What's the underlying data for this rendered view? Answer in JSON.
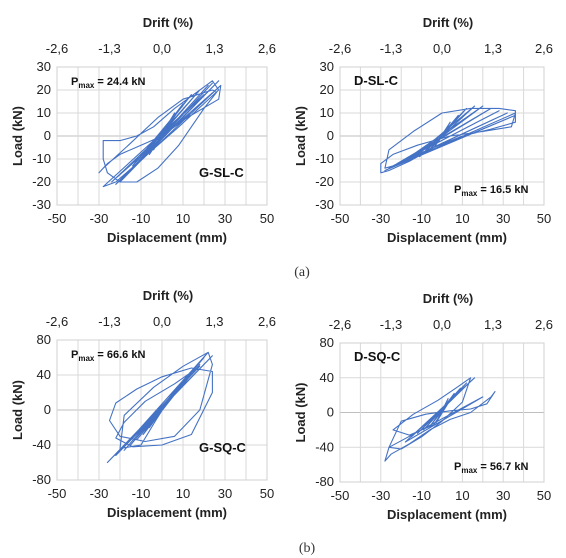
{
  "captions": [
    "(a)",
    "(b)"
  ],
  "colors": {
    "curve": "#4472c4",
    "grid": "#d9d9d9"
  },
  "chart_data": [
    {
      "type": "line",
      "panel": "G-SL-C",
      "label": "G-SL-C",
      "pmax_symbol": "P",
      "pmax_subscript": "max",
      "pmax_value": " = 24.4 kN",
      "xlabel": "Displacement (mm)",
      "ylabel": "Load (kN)",
      "top_label": "Drift (%)",
      "xlim": [
        -50,
        50
      ],
      "ylim": [
        -30,
        30
      ],
      "xticks": [
        -50,
        -30,
        -10,
        10,
        30,
        50
      ],
      "yticks": [
        30,
        20,
        10,
        0,
        -10,
        -20,
        -30
      ],
      "top_ticks": [
        "-2,6",
        "-1,3",
        "0,0",
        "1,3",
        "2,6"
      ],
      "top_tick_x": [
        -50,
        -25,
        0,
        25,
        50
      ],
      "pmax_pos": "top-left",
      "label_pos": "bottom-right",
      "grid": true,
      "series": [
        {
          "x": [
            0,
            5,
            -4,
            6,
            -6,
            10,
            -10,
            14,
            -14,
            18,
            -16,
            22,
            -18,
            24,
            -20,
            27,
            -22,
            28,
            -24,
            20,
            -28,
            -22,
            8,
            27,
            24,
            6,
            -4,
            -12,
            -20,
            -28,
            -28,
            -26,
            -20,
            -12,
            -2,
            8,
            20,
            26,
            24,
            10,
            -2,
            -16,
            -28,
            -30,
            -26,
            -20,
            -10,
            0,
            12,
            27,
            28,
            14,
            0
          ],
          "y": [
            0,
            8,
            -6,
            10,
            -8,
            14,
            -10,
            18,
            -13,
            20,
            -16,
            22,
            -18,
            23,
            -20,
            24,
            -21,
            22,
            -20,
            18,
            -22,
            -20,
            4,
            20,
            24,
            12,
            4,
            0,
            -2,
            -2,
            -10,
            -16,
            -20,
            -20,
            -14,
            -4,
            12,
            19,
            20,
            16,
            8,
            -4,
            -14,
            -16,
            -12,
            -8,
            -4,
            0,
            8,
            16,
            22,
            10,
            0
          ]
        }
      ]
    },
    {
      "type": "line",
      "panel": "D-SL-C",
      "label": "D-SL-C",
      "pmax_symbol": "P",
      "pmax_subscript": "max",
      "pmax_value": " = 16.5 kN",
      "xlabel": "Displacement (mm)",
      "ylabel": "Load (kN)",
      "top_label": "Drift (%)",
      "xlim": [
        -50,
        50
      ],
      "ylim": [
        -30,
        30
      ],
      "xticks": [
        -50,
        -30,
        -10,
        10,
        30,
        50
      ],
      "yticks": [
        30,
        20,
        10,
        0,
        -10,
        -20,
        -30
      ],
      "top_ticks": [
        "-2,6",
        "-1,3",
        "0,0",
        "1,3",
        "2,6"
      ],
      "top_tick_x": [
        -50,
        -25,
        0,
        25,
        50
      ],
      "pmax_pos": "bottom-right",
      "label_pos": "top-left",
      "grid": true,
      "series": [
        {
          "x": [
            0,
            4,
            -4,
            8,
            -7,
            12,
            -11,
            16,
            -15,
            20,
            -19,
            24,
            -22,
            28,
            -24,
            32,
            -26,
            36,
            -28,
            36,
            34,
            20,
            4,
            -12,
            -24,
            -30,
            -30,
            -26,
            -16,
            -4,
            10,
            24,
            36,
            36,
            28,
            14,
            0,
            -14,
            -26,
            -28,
            -20,
            -6,
            0
          ],
          "y": [
            0,
            6,
            -5,
            9,
            -7,
            12,
            -9,
            13,
            -10,
            13,
            -11,
            12,
            -12,
            11,
            -13,
            10,
            -14,
            9,
            -15,
            10,
            4,
            2,
            0,
            -4,
            -8,
            -12,
            -16,
            -15,
            -11,
            -5,
            0,
            3,
            6,
            11,
            12,
            12,
            10,
            2,
            -6,
            -14,
            -12,
            -6,
            0
          ]
        }
      ]
    },
    {
      "type": "line",
      "panel": "G-SQ-C",
      "label": "G-SQ-C",
      "pmax_symbol": "P",
      "pmax_subscript": "max",
      "pmax_value": " = 66.6 kN",
      "xlabel": "Displacement (mm)",
      "ylabel": "Load (kN)",
      "top_label": "Drift (%)",
      "xlim": [
        -50,
        50
      ],
      "ylim": [
        -80,
        80
      ],
      "xticks": [
        -50,
        -30,
        -10,
        10,
        30,
        50
      ],
      "yticks": [
        80,
        40,
        0,
        -40,
        -80
      ],
      "top_ticks": [
        "-2,6",
        "-1,3",
        "0,0",
        "1,3",
        "2,6"
      ],
      "top_tick_x": [
        -50,
        -25,
        0,
        25,
        50
      ],
      "pmax_pos": "top-left",
      "label_pos": "bottom-right",
      "grid": true,
      "series": [
        {
          "x": [
            0,
            4,
            -3,
            7,
            -6,
            10,
            -9,
            14,
            -12,
            18,
            -15,
            20,
            -18,
            22,
            -22,
            24,
            -26,
            18,
            6,
            -8,
            -18,
            -22,
            -14,
            0,
            14,
            24,
            24,
            14,
            0,
            -12,
            -22,
            -25,
            -20,
            -8,
            6,
            18,
            24,
            22,
            10,
            -4,
            -18,
            -20,
            -10,
            0
          ],
          "y": [
            0,
            16,
            -12,
            26,
            -20,
            34,
            -28,
            42,
            -34,
            52,
            -40,
            60,
            -46,
            66,
            -52,
            62,
            -60,
            50,
            30,
            10,
            -14,
            -32,
            -42,
            -40,
            -28,
            20,
            44,
            48,
            38,
            24,
            8,
            -12,
            -30,
            -36,
            -30,
            0,
            52,
            66,
            50,
            26,
            -6,
            -44,
            -40,
            0
          ]
        }
      ]
    },
    {
      "type": "line",
      "panel": "D-SQ-C",
      "label": "D-SQ-C",
      "pmax_symbol": "P",
      "pmax_subscript": "max",
      "pmax_value": " = 56.7 kN",
      "xlabel": "Displacement (mm)",
      "ylabel": "Load (kN)",
      "top_label": "Drift (%)",
      "xlim": [
        -50,
        50
      ],
      "ylim": [
        -80,
        80
      ],
      "xticks": [
        -50,
        -30,
        -10,
        10,
        30,
        50
      ],
      "yticks": [
        80,
        40,
        0,
        -40,
        -80
      ],
      "top_ticks": [
        "-2,6",
        "-1,3",
        "0,0",
        "1,3",
        "2,6"
      ],
      "top_tick_x": [
        -50,
        -25,
        0,
        25,
        50
      ],
      "pmax_pos": "bottom-right",
      "label_pos": "top-left",
      "grid": true,
      "series": [
        {
          "x": [
            0,
            3,
            -3,
            6,
            -6,
            9,
            -9,
            12,
            -12,
            15,
            -15,
            16,
            -18,
            20,
            -26,
            -28,
            -25,
            -16,
            -6,
            4,
            14,
            24,
            26,
            22,
            14,
            4,
            -8,
            -20,
            -26,
            -20,
            -10,
            0,
            10,
            14,
            8,
            -2,
            -14,
            -24,
            -16,
            -4,
            0
          ],
          "y": [
            0,
            16,
            -12,
            22,
            -16,
            28,
            -20,
            34,
            -24,
            38,
            -28,
            40,
            -34,
            18,
            -40,
            -56,
            -48,
            -36,
            -20,
            -8,
            0,
            18,
            24,
            10,
            4,
            2,
            -2,
            -10,
            -40,
            -42,
            -28,
            -10,
            12,
            40,
            30,
            14,
            -2,
            -20,
            -26,
            -14,
            0
          ]
        }
      ]
    }
  ]
}
